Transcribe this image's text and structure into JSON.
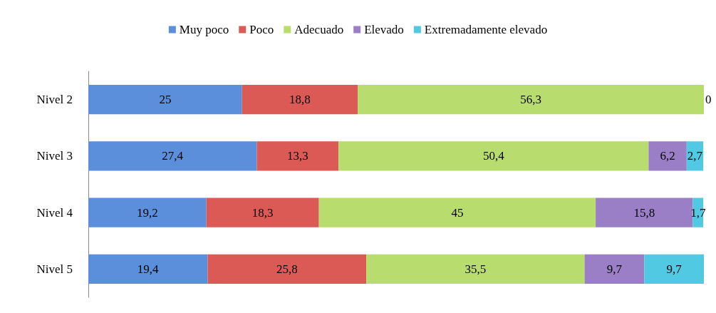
{
  "chart_data": {
    "type": "bar",
    "orientation": "horizontal",
    "stacked": true,
    "categories": [
      "Nivel 2",
      "Nivel 3",
      "Nivel 4",
      "Nivel 5"
    ],
    "series": [
      {
        "name": "Muy poco",
        "color": "#5b8fdb",
        "values": [
          25,
          27.4,
          19.2,
          19.4
        ],
        "value_labels": [
          "25",
          "27,4",
          "19,2",
          "19,4"
        ]
      },
      {
        "name": "Poco",
        "color": "#dc5a56",
        "values": [
          18.8,
          13.3,
          18.3,
          25.8
        ],
        "value_labels": [
          "18,8",
          "13,3",
          "18,3",
          "25,8"
        ]
      },
      {
        "name": "Adecuado",
        "color": "#b9dc6e",
        "values": [
          56.3,
          50.4,
          45,
          35.5
        ],
        "value_labels": [
          "56,3",
          "50,4",
          "45",
          "35,5"
        ]
      },
      {
        "name": "Elevado",
        "color": "#9b7fc6",
        "values": [
          0,
          6.2,
          15.8,
          9.7
        ],
        "value_labels": [
          "0",
          "6,2",
          "15,8",
          "9,7"
        ]
      },
      {
        "name": "Extremadamente elevado",
        "color": "#52c9e3",
        "values": [
          0,
          2.7,
          1.7,
          9.7
        ],
        "value_labels": [
          null,
          "2,7",
          "1,7",
          "9,7"
        ]
      }
    ],
    "xlim": [
      0,
      100.1
    ],
    "legend": "top",
    "grid": false,
    "tick_labels": "y"
  }
}
